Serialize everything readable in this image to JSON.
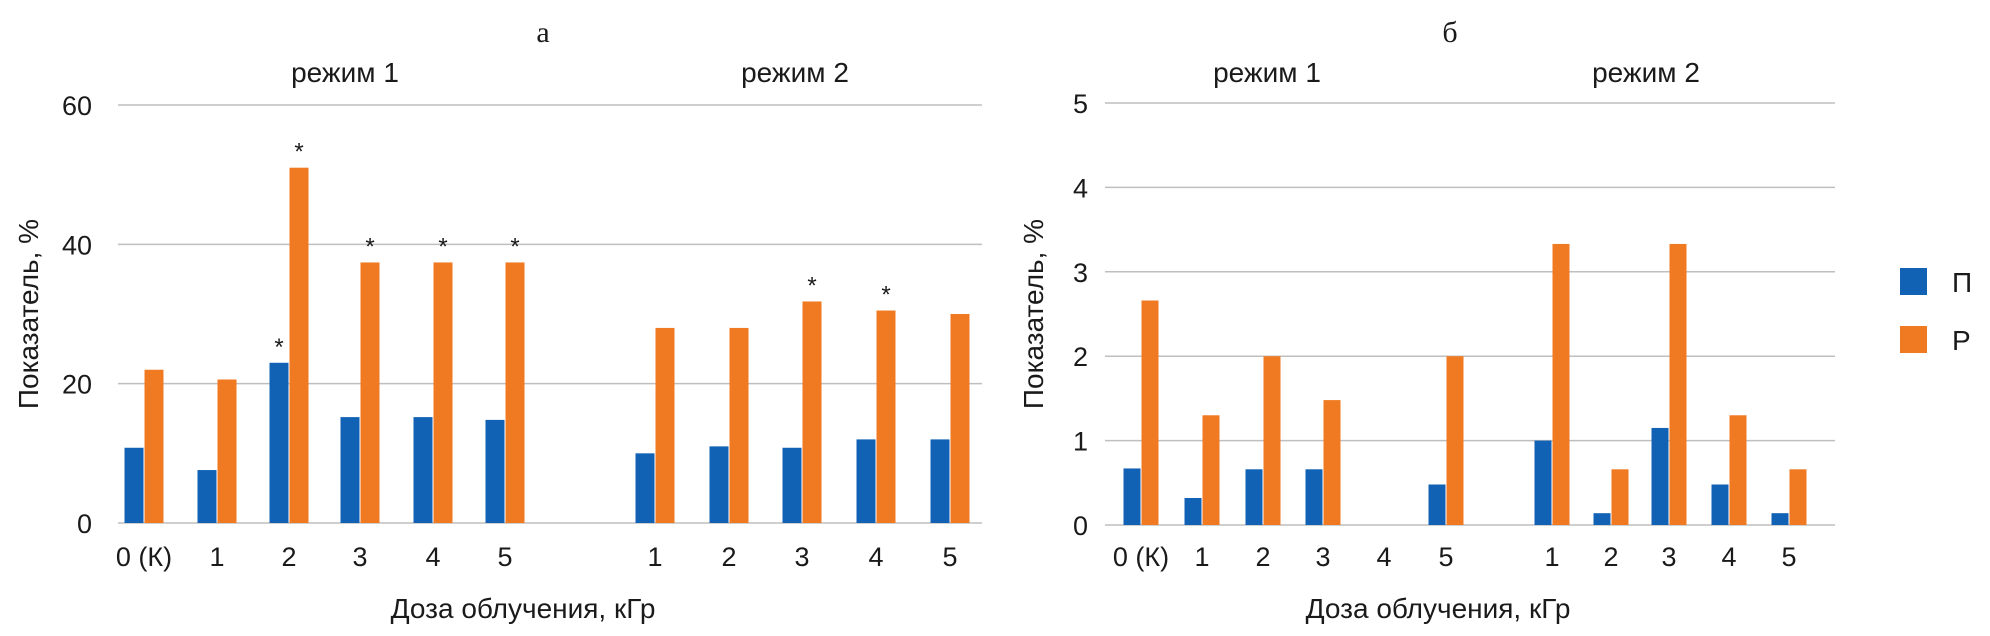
{
  "colors": {
    "P": "#1162b4",
    "R": "#f07a22"
  },
  "legend": [
    {
      "key": "P",
      "label": "П"
    },
    {
      "key": "R",
      "label": "Р"
    }
  ],
  "chart_data": [
    {
      "type": "bar",
      "panel_label": "а",
      "ylabel": "Показатель, %",
      "xlabel": "Доза облучения, кГр",
      "ylim": [
        0,
        60
      ],
      "yticks": [
        0,
        20,
        40,
        60
      ],
      "grid": true,
      "groups": [
        {
          "label": "режим 1",
          "categories": [
            "0 (К)",
            "1",
            "2",
            "3",
            "4",
            "5"
          ]
        },
        {
          "label": "режим 2",
          "categories": [
            "1",
            "2",
            "3",
            "4",
            "5"
          ]
        }
      ],
      "series": [
        {
          "name": "П",
          "values": [
            10.8,
            7.6,
            23,
            15.2,
            15.2,
            14.8,
            10,
            11,
            10.8,
            12,
            12
          ]
        },
        {
          "name": "Р",
          "values": [
            22,
            20.6,
            51,
            37.4,
            37.4,
            37.4,
            28,
            28,
            31.8,
            30.5,
            30
          ]
        }
      ],
      "annotations": [
        {
          "category_index": 2,
          "series": "П",
          "text": "*"
        },
        {
          "category_index": 2,
          "series": "Р",
          "text": "*"
        },
        {
          "category_index": 3,
          "series": "Р",
          "text": "*"
        },
        {
          "category_index": 4,
          "series": "Р",
          "text": "*"
        },
        {
          "category_index": 5,
          "series": "Р",
          "text": "*"
        },
        {
          "category_index": 8,
          "series": "Р",
          "text": "*"
        },
        {
          "category_index": 9,
          "series": "Р",
          "text": "*"
        }
      ]
    },
    {
      "type": "bar",
      "panel_label": "б",
      "ylabel": "Показатель, %",
      "xlabel": "Доза облучения, кГр",
      "ylim": [
        0,
        5
      ],
      "yticks": [
        0,
        1,
        2,
        3,
        4,
        5
      ],
      "grid": true,
      "legend_position": "right",
      "groups": [
        {
          "label": "режим 1",
          "categories": [
            "0 (К)",
            "1",
            "2",
            "3",
            "4",
            "5"
          ]
        },
        {
          "label": "режим 2",
          "categories": [
            "1",
            "2",
            "3",
            "4",
            "5"
          ]
        }
      ],
      "series": [
        {
          "name": "П",
          "values": [
            0.67,
            0.32,
            0.66,
            0.66,
            0,
            0.48,
            1.0,
            0.14,
            1.15,
            0.48,
            0.14
          ]
        },
        {
          "name": "Р",
          "values": [
            2.66,
            1.3,
            2.0,
            1.48,
            0,
            2.0,
            3.33,
            0.66,
            3.33,
            1.3,
            0.66
          ]
        }
      ],
      "annotations": []
    }
  ]
}
